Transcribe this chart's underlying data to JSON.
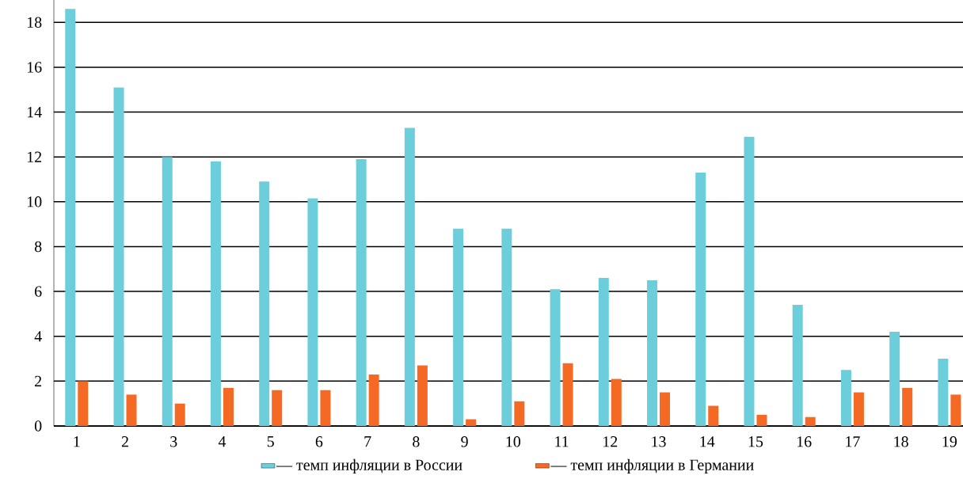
{
  "chart_data": {
    "type": "bar",
    "categories": [
      "1",
      "2",
      "3",
      "4",
      "5",
      "6",
      "7",
      "8",
      "9",
      "10",
      "11",
      "12",
      "13",
      "14",
      "15",
      "16",
      "17",
      "18",
      "19"
    ],
    "series": [
      {
        "name": "— темп инфляции в России",
        "color": "#6dcedb",
        "values": [
          18.6,
          15.1,
          12.0,
          11.8,
          10.9,
          10.15,
          11.9,
          13.3,
          8.8,
          8.8,
          6.1,
          6.6,
          6.5,
          11.3,
          12.9,
          5.4,
          2.5,
          4.2,
          3.0
        ]
      },
      {
        "name": "— темп инфляции в Германии",
        "color": "#f46a25",
        "values": [
          2.0,
          1.4,
          1.0,
          1.7,
          1.6,
          1.6,
          2.3,
          2.7,
          0.3,
          1.1,
          2.8,
          2.1,
          1.5,
          0.9,
          0.5,
          0.4,
          1.5,
          1.7,
          1.4
        ]
      }
    ],
    "ylim": [
      0,
      19
    ],
    "yticks": [
      0,
      2,
      4,
      6,
      8,
      10,
      12,
      14,
      16,
      18
    ],
    "grid": "y",
    "legend": "bottom"
  }
}
